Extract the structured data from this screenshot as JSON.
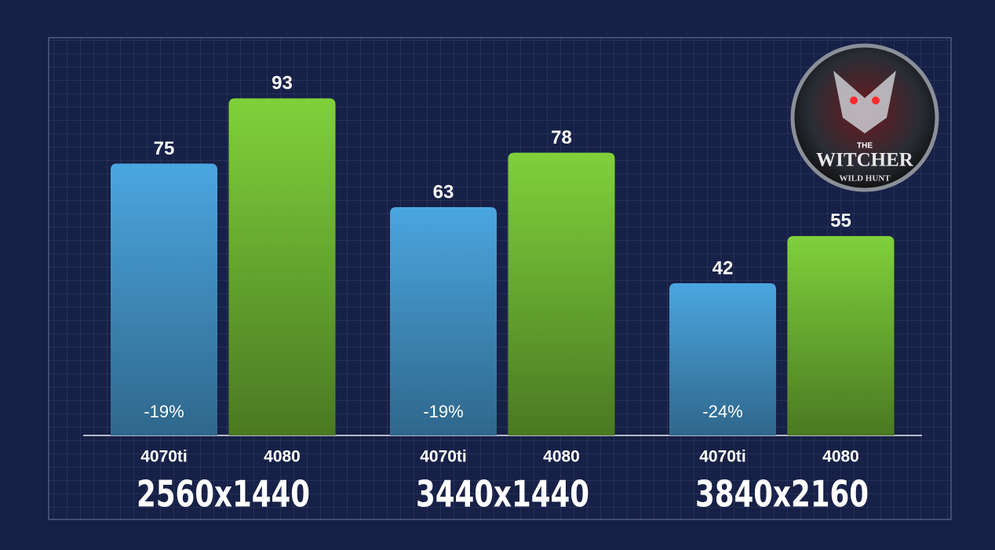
{
  "chart_data": {
    "type": "bar",
    "categories": [
      "2560x1440",
      "3440x1440",
      "3840x2160"
    ],
    "series": [
      {
        "name": "4070ti",
        "color": "#4ba6e0",
        "values": [
          75,
          63,
          42
        ],
        "annotations": [
          "-19%",
          "-19%",
          "-24%"
        ]
      },
      {
        "name": "4080",
        "color": "#7fd13b",
        "values": [
          93,
          78,
          55
        ]
      }
    ],
    "ylim": [
      0,
      100
    ],
    "logo": {
      "top": "THE",
      "main": "WITCHER",
      "sub": "WILD HUNT"
    }
  }
}
